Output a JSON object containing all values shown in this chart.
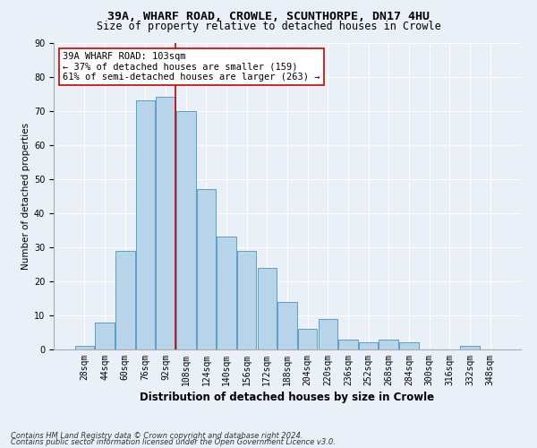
{
  "title1": "39A, WHARF ROAD, CROWLE, SCUNTHORPE, DN17 4HU",
  "title2": "Size of property relative to detached houses in Crowle",
  "xlabel": "Distribution of detached houses by size in Crowle",
  "ylabel": "Number of detached properties",
  "footnote1": "Contains HM Land Registry data © Crown copyright and database right 2024.",
  "footnote2": "Contains public sector information licensed under the Open Government Licence v3.0.",
  "bar_labels": [
    "28sqm",
    "44sqm",
    "60sqm",
    "76sqm",
    "92sqm",
    "108sqm",
    "124sqm",
    "140sqm",
    "156sqm",
    "172sqm",
    "188sqm",
    "204sqm",
    "220sqm",
    "236sqm",
    "252sqm",
    "268sqm",
    "284sqm",
    "300sqm",
    "316sqm",
    "332sqm",
    "348sqm"
  ],
  "bar_values": [
    1,
    8,
    29,
    73,
    74,
    70,
    47,
    33,
    29,
    24,
    14,
    6,
    9,
    3,
    2,
    3,
    2,
    0,
    0,
    1,
    0
  ],
  "bar_color": "#b8d4e8",
  "bar_edge_color": "#5a9ec9",
  "property_label": "39A WHARF ROAD: 103sqm",
  "pct_smaller": 37,
  "n_smaller": 159,
  "pct_larger": 61,
  "n_larger": 263,
  "vline_color": "#cc0000",
  "annotation_box_color": "#ffffff",
  "annotation_box_edge": "#cc0000",
  "ylim": [
    0,
    90
  ],
  "yticks": [
    0,
    10,
    20,
    30,
    40,
    50,
    60,
    70,
    80,
    90
  ],
  "background_color": "#eaf0f8",
  "grid_color": "#ffffff",
  "title1_fontsize": 9.5,
  "title2_fontsize": 8.5,
  "xlabel_fontsize": 8.5,
  "ylabel_fontsize": 7.5,
  "tick_fontsize": 7,
  "annot_fontsize": 7.5,
  "footnote_fontsize": 6
}
